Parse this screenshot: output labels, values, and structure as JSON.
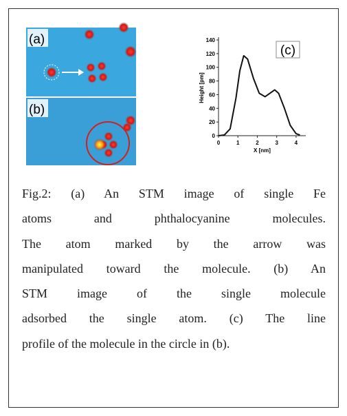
{
  "figure": {
    "panel_labels": [
      "(a)",
      "(b)"
    ]
  },
  "chart_data": {
    "type": "line",
    "panel_label": "(c)",
    "ylabel": "Height [pm]",
    "xlabel": "X [nm]",
    "x": [
      0,
      0.3,
      0.6,
      0.9,
      1.1,
      1.3,
      1.5,
      1.8,
      2.1,
      2.4,
      2.7,
      2.9,
      3.1,
      3.4,
      3.7,
      4.0,
      4.2
    ],
    "values": [
      0,
      1,
      10,
      55,
      95,
      117,
      112,
      84,
      62,
      57,
      63,
      67,
      62,
      40,
      15,
      3,
      1
    ],
    "color": "#111111",
    "xlim": [
      0,
      4.5
    ],
    "xticks": [
      0,
      1,
      2,
      3,
      4
    ],
    "ylim": [
      0,
      140
    ],
    "yticks": [
      0,
      20,
      40,
      60,
      80,
      100,
      120,
      140
    ]
  },
  "caption": {
    "lines": [
      "Fig.2: (a) An STM image of single Fe",
      "atoms and phthalocyanine molecules.",
      "The atom marked by the arrow was",
      "manipulated toward the molecule. (b) An",
      "STM image of the single molecule",
      "adsorbed the single atom. (c) The line",
      "profile of the molecule in the circle in (b)."
    ]
  }
}
